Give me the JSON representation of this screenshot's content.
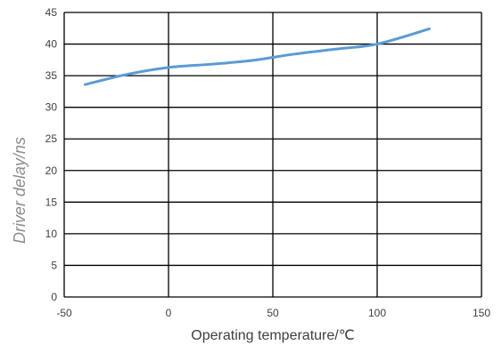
{
  "chart_data": {
    "type": "line",
    "title": "",
    "xlabel": "Operating temperature/℃",
    "ylabel": "Driver delay/ns",
    "xlim": [
      -50,
      150
    ],
    "ylim": [
      0,
      45
    ],
    "xticks": [
      -50,
      0,
      50,
      100,
      150
    ],
    "yticks": [
      0,
      5,
      10,
      15,
      20,
      25,
      30,
      35,
      40,
      45
    ],
    "grid": true,
    "legend": "none",
    "series": [
      {
        "color": "#5b9bd5",
        "x": [
          -40,
          -20,
          0,
          20,
          40,
          60,
          80,
          100,
          125
        ],
        "y": [
          33.6,
          35.2,
          36.3,
          36.8,
          37.4,
          38.4,
          39.2,
          40.0,
          42.4
        ]
      }
    ]
  }
}
